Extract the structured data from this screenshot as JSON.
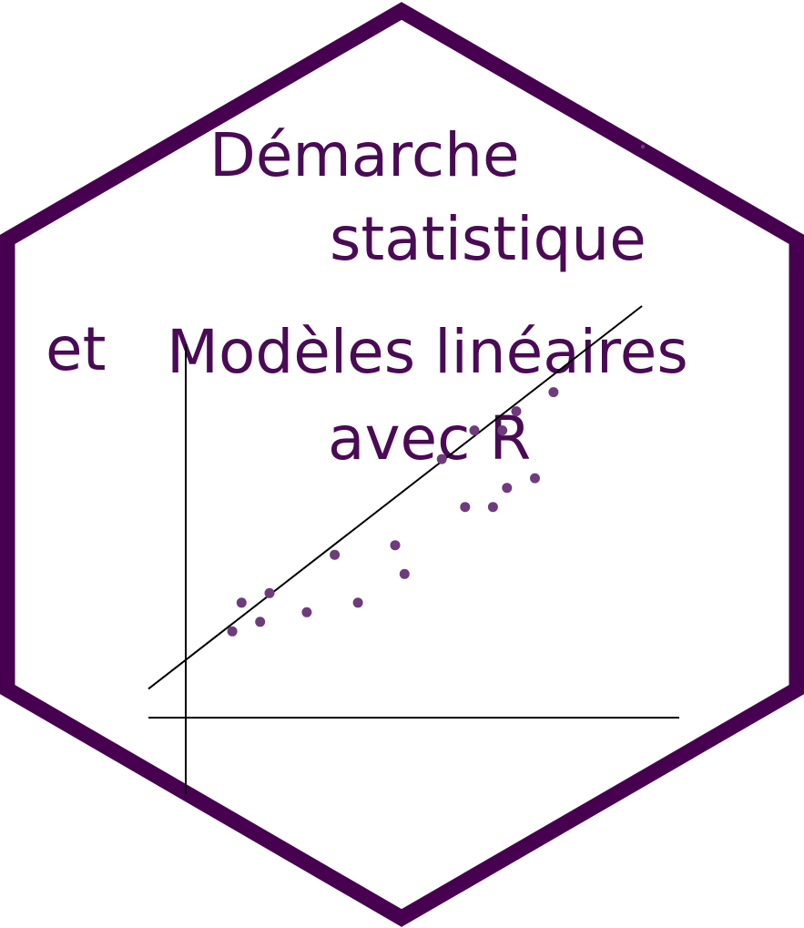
{
  "sticker": {
    "title_lines": [
      "Démarche",
      "statistique",
      "et",
      "Modèles linéaires",
      "avec R"
    ],
    "colors": {
      "border": "#470050",
      "text": "#4a0a55",
      "points": "#6e3c7c",
      "axes": "#000000",
      "background": "#ffffff"
    }
  },
  "chart_data": {
    "type": "scatter",
    "title": "",
    "xlabel": "",
    "ylabel": "",
    "grid": false,
    "x": [
      1.0,
      1.2,
      1.6,
      1.8,
      2.6,
      3.2,
      3.7,
      4.5,
      4.7,
      5.5,
      6.0,
      6.2,
      6.6,
      6.8,
      6.9,
      7.1,
      7.5,
      7.9
    ],
    "y": [
      1.3,
      1.6,
      1.4,
      1.7,
      1.5,
      2.1,
      1.6,
      2.2,
      1.9,
      3.1,
      2.6,
      3.4,
      2.6,
      3.4,
      2.8,
      3.6,
      2.9,
      3.8
    ],
    "fit_line": [
      [
        -0.8,
        0.7
      ],
      [
        9.8,
        4.7
      ]
    ],
    "xlim": [
      -0.8,
      10.6
    ],
    "ylim": [
      -0.4,
      4.3
    ]
  }
}
